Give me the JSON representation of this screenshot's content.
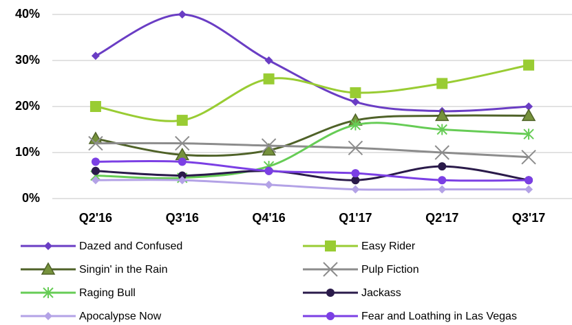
{
  "chart_data": {
    "type": "line",
    "categories": [
      "Q2'16",
      "Q3'16",
      "Q4'16",
      "Q1'17",
      "Q2'17",
      "Q3'17"
    ],
    "series": [
      {
        "name": "Dazed and Confused",
        "color": "#6a3dc4",
        "marker": "diamond",
        "values": [
          31,
          40,
          30,
          21,
          19,
          20
        ]
      },
      {
        "name": "Easy Rider",
        "color": "#99cc33",
        "marker": "square",
        "values": [
          20,
          17,
          26,
          23,
          25,
          29
        ]
      },
      {
        "name": "Singin' in the Rain",
        "color": "#4f6228",
        "marker": "triangle",
        "values": [
          13,
          9.5,
          10.5,
          17,
          18,
          18
        ]
      },
      {
        "name": "Pulp Fiction",
        "color": "#8c8c8c",
        "marker": "x",
        "values": [
          12,
          12,
          11.5,
          11,
          10,
          9
        ]
      },
      {
        "name": "Raging Bull",
        "color": "#66cc55",
        "marker": "star",
        "values": [
          5,
          4.5,
          7,
          16,
          15,
          14
        ]
      },
      {
        "name": "Jackass",
        "color": "#2a1a4a",
        "marker": "circle",
        "values": [
          6,
          5,
          6,
          4,
          7,
          4
        ]
      },
      {
        "name": "Apocalypse Now",
        "color": "#b3a2e6",
        "marker": "diamond",
        "values": [
          4,
          4,
          3,
          2,
          2,
          2
        ]
      },
      {
        "name": "Fear and Loathing in Las Vegas",
        "color": "#7b3fe4",
        "marker": "circle",
        "values": [
          8,
          8,
          6,
          5.5,
          4,
          4
        ]
      }
    ],
    "ylim": [
      0,
      40
    ],
    "yticks": [
      {
        "value": 0,
        "label": "0%"
      },
      {
        "value": 10,
        "label": "10%"
      },
      {
        "value": 20,
        "label": "20%"
      },
      {
        "value": 30,
        "label": "30%"
      },
      {
        "value": 40,
        "label": "40%"
      }
    ],
    "grid": true,
    "legend": "bottom"
  }
}
